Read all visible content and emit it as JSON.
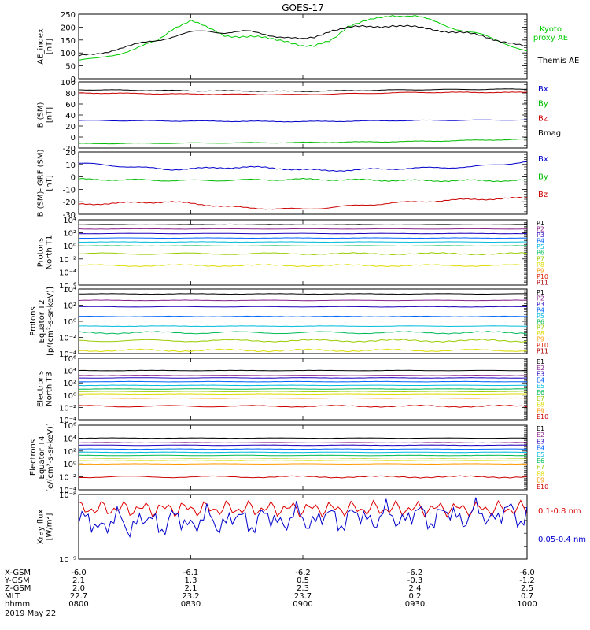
{
  "chart_data": [
    {
      "title": "GOES-17",
      "type": "line",
      "ylabel": [
        "AE_index",
        "[nT]"
      ],
      "ylim": [
        0,
        250
      ],
      "yticks": [
        0,
        50,
        100,
        150,
        200,
        250
      ],
      "legend_placement": "right",
      "series": [
        {
          "name": "Kyoto proxy AE",
          "name_lines": [
            "Kyoto",
            "proxy AE"
          ],
          "color": "#00cc00",
          "x": [
            0,
            0.15,
            0.3,
            0.5,
            0.7,
            0.85,
            1.0,
            1.15,
            1.3,
            1.5,
            1.7,
            1.85,
            2.0,
            2.1,
            2.25,
            2.4,
            2.6,
            2.8,
            3.0,
            3.2,
            3.4,
            3.6,
            3.8,
            4.0
          ],
          "values": [
            72,
            75,
            92,
            115,
            145,
            200,
            225,
            195,
            170,
            162,
            155,
            150,
            125,
            122,
            150,
            205,
            225,
            248,
            242,
            218,
            190,
            168,
            140,
            105
          ]
        },
        {
          "name": "Themis AE",
          "color": "#000000",
          "x": [
            0,
            0.15,
            0.3,
            0.5,
            0.7,
            0.85,
            1.0,
            1.15,
            1.3,
            1.5,
            1.7,
            1.85,
            2.0,
            2.1,
            2.25,
            2.4,
            2.6,
            2.8,
            3.0,
            3.2,
            3.4,
            3.6,
            3.8,
            4.0
          ],
          "values": [
            85,
            95,
            112,
            130,
            150,
            165,
            178,
            185,
            180,
            182,
            170,
            162,
            150,
            158,
            190,
            198,
            200,
            208,
            198,
            190,
            178,
            165,
            145,
            120
          ]
        }
      ]
    },
    {
      "type": "line",
      "ylabel": [
        "B (SM)",
        "[nT]"
      ],
      "ylim": [
        -20,
        100
      ],
      "yticks": [
        -20,
        0,
        20,
        40,
        60,
        80,
        100
      ],
      "series": [
        {
          "name": "Bx",
          "color": "#0000cc",
          "x": [
            0,
            1,
            2,
            3,
            4
          ],
          "values": [
            30,
            29,
            28,
            30,
            31
          ]
        },
        {
          "name": "By",
          "color": "#00bb00",
          "x": [
            0,
            1,
            2,
            3,
            4
          ],
          "values": [
            -12,
            -11,
            -10,
            -8,
            -4
          ]
        },
        {
          "name": "Bz",
          "color": "#cc0000",
          "x": [
            0,
            1,
            2,
            3,
            4
          ],
          "values": [
            80,
            78,
            77,
            81,
            81
          ]
        },
        {
          "name": "Bmag",
          "color": "#000000",
          "x": [
            0,
            1,
            2,
            3,
            4
          ],
          "values": [
            86,
            84,
            83,
            86,
            87
          ]
        }
      ]
    },
    {
      "type": "line",
      "ylabel": [
        "B (SM)-IGRF (SM)",
        "[nT]"
      ],
      "ylim": [
        -30,
        20
      ],
      "yticks": [
        -30,
        -20,
        -10,
        0,
        10,
        20
      ],
      "series": [
        {
          "name": "Bx",
          "color": "#0000cc",
          "x": [
            0,
            0.8,
            1.5,
            2.2,
            3.0,
            3.5,
            4.0
          ],
          "values": [
            11,
            6,
            8,
            5,
            7,
            8,
            12
          ]
        },
        {
          "name": "By",
          "color": "#00bb00",
          "x": [
            0,
            1,
            2,
            3,
            4
          ],
          "values": [
            -2,
            -3,
            -2,
            -3,
            -3
          ]
        },
        {
          "name": "Bz",
          "color": "#cc0000",
          "x": [
            0,
            0.8,
            1.5,
            2.0,
            2.8,
            3.5,
            4.0
          ],
          "values": [
            -22,
            -20,
            -25,
            -26,
            -21,
            -18,
            -17
          ]
        }
      ]
    },
    {
      "type": "line",
      "ylabel": [
        "Protons",
        "North T1"
      ],
      "ylim_log10": [
        -6,
        4
      ],
      "yticks_log10": [
        -6,
        -4,
        -2,
        0,
        2,
        4
      ],
      "series": [
        {
          "name": "P1",
          "color": "#000000",
          "log10_values": [
            3.3
          ]
        },
        {
          "name": "P2",
          "color": "#882288",
          "log10_values": [
            2.6
          ]
        },
        {
          "name": "P3",
          "color": "#2200bb",
          "log10_values": [
            1.9
          ]
        },
        {
          "name": "P4",
          "color": "#0066ff",
          "log10_values": [
            1.2
          ]
        },
        {
          "name": "P5",
          "color": "#00bbdd",
          "log10_values": [
            0.6
          ]
        },
        {
          "name": "P6",
          "color": "#00bb55",
          "log10_values": [
            0.0
          ]
        },
        {
          "name": "P7",
          "color": "#99cc00",
          "log10_values": [
            -1.2
          ]
        },
        {
          "name": "P8",
          "color": "#dddd00",
          "log10_values": [
            -3.0
          ]
        },
        {
          "name": "P9",
          "color": "#ff9900"
        },
        {
          "name": "P10",
          "color": "#dd2200"
        },
        {
          "name": "P11",
          "color": "#aa0000"
        }
      ]
    },
    {
      "type": "line",
      "ylabel": [
        "Protons",
        "Equator T2",
        "[p/(cm²-s-sr-keV)]"
      ],
      "ylim_log10": [
        -4,
        4
      ],
      "yticks_log10": [
        -4,
        -2,
        0,
        2,
        4
      ],
      "series": [
        {
          "name": "P1",
          "color": "#000000",
          "log10_values": [
            3.4
          ]
        },
        {
          "name": "P2",
          "color": "#882288",
          "log10_values": [
            2.6
          ]
        },
        {
          "name": "P3",
          "color": "#2200bb",
          "log10_values": [
            1.8
          ]
        },
        {
          "name": "P4",
          "color": "#0066ff",
          "log10_values": [
            0.6
          ]
        },
        {
          "name": "P5",
          "color": "#00bbdd",
          "log10_values": [
            -0.6
          ]
        },
        {
          "name": "P6",
          "color": "#00bb55",
          "log10_values": [
            -1.4
          ]
        },
        {
          "name": "P7",
          "color": "#99cc00",
          "log10_values": [
            -2.4
          ]
        },
        {
          "name": "P8",
          "color": "#dddd00",
          "log10_values": [
            -3.6
          ]
        },
        {
          "name": "P9",
          "color": "#ff9900"
        },
        {
          "name": "P10",
          "color": "#dd2200"
        },
        {
          "name": "P11",
          "color": "#aa0000"
        }
      ]
    },
    {
      "type": "line",
      "ylabel": [
        "Electrons",
        "North T3"
      ],
      "ylim_log10": [
        -4,
        6
      ],
      "yticks_log10": [
        -4,
        -2,
        0,
        2,
        4,
        6
      ],
      "series": [
        {
          "name": "E1",
          "color": "#000000",
          "log10_values": [
            4.0
          ]
        },
        {
          "name": "E2",
          "color": "#882288",
          "log10_values": [
            3.2
          ]
        },
        {
          "name": "E3",
          "color": "#2200bb",
          "log10_values": [
            2.8
          ]
        },
        {
          "name": "E4",
          "color": "#0066ff",
          "log10_values": [
            2.2
          ]
        },
        {
          "name": "E5",
          "color": "#00bbdd",
          "log10_values": [
            1.6
          ]
        },
        {
          "name": "E6",
          "color": "#00bb55",
          "log10_values": [
            1.0
          ]
        },
        {
          "name": "E7",
          "color": "#99cc00",
          "log10_values": [
            0.6
          ]
        },
        {
          "name": "E8",
          "color": "#dddd00",
          "log10_values": [
            0.2
          ]
        },
        {
          "name": "E9",
          "color": "#ff9900",
          "log10_values": [
            -0.5
          ]
        },
        {
          "name": "E10",
          "color": "#cc0000",
          "log10_values": [
            -1.8
          ]
        }
      ]
    },
    {
      "type": "line",
      "ylabel": [
        "Electrons",
        "Equator T4",
        "[e/(cm²-s-sr-keV)]"
      ],
      "ylim_log10": [
        -4,
        6
      ],
      "yticks_log10": [
        -4,
        -2,
        0,
        2,
        4,
        6
      ],
      "series": [
        {
          "name": "E1",
          "color": "#000000",
          "log10_values": [
            4.0
          ]
        },
        {
          "name": "E2",
          "color": "#882288",
          "log10_values": [
            3.3
          ]
        },
        {
          "name": "E3",
          "color": "#2200bb",
          "log10_values": [
            2.9
          ]
        },
        {
          "name": "E4",
          "color": "#0066ff",
          "log10_values": [
            2.3
          ]
        },
        {
          "name": "E5",
          "color": "#00bbdd",
          "log10_values": [
            1.8
          ]
        },
        {
          "name": "E6",
          "color": "#00bb55",
          "log10_values": [
            1.3
          ]
        },
        {
          "name": "E7",
          "color": "#99cc00",
          "log10_values": [
            0.9
          ]
        },
        {
          "name": "E8",
          "color": "#dddd00",
          "log10_values": [
            0.5
          ]
        },
        {
          "name": "E9",
          "color": "#ff9900",
          "log10_values": [
            0.0
          ]
        },
        {
          "name": "E10",
          "color": "#cc0000",
          "log10_values": [
            -2.0
          ]
        }
      ]
    },
    {
      "type": "line",
      "ylabel": [
        "Xray flux",
        "[W/m²]"
      ],
      "ylim_log10": [
        -9,
        -8
      ],
      "yticks_log10": [
        -9,
        -8
      ],
      "series": [
        {
          "name": "0.1-0.8 nm",
          "color": "#dd0000"
        },
        {
          "name": "0.05-0.4 nm",
          "color": "#0000cc"
        }
      ]
    }
  ],
  "x_axis": {
    "rows": [
      {
        "label": "X-GSM",
        "values": [
          "-6.0",
          "-6.1",
          "-6.2",
          "-6.2",
          "-6.0"
        ]
      },
      {
        "label": "Y-GSM",
        "values": [
          "2.1",
          "1.3",
          "0.5",
          "-0.3",
          "-1.2"
        ]
      },
      {
        "label": "Z-GSM",
        "values": [
          "2.0",
          "2.1",
          "2.3",
          "2.4",
          "2.5"
        ]
      },
      {
        "label": "MLT",
        "values": [
          "22.7",
          "23.2",
          "23.7",
          "0.2",
          "0.7"
        ]
      },
      {
        "label": "hhmm",
        "values": [
          "0800",
          "0830",
          "0900",
          "0930",
          "1000"
        ]
      }
    ],
    "date": "2019 May 22"
  }
}
